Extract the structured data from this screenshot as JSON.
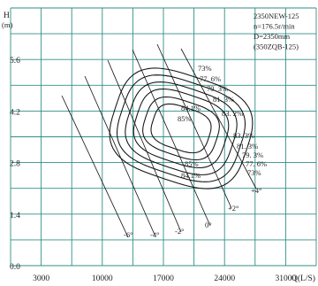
{
  "chart_data": {
    "type": "line",
    "ylabel_top": "H",
    "ylabel_unit": "(m)",
    "xlabel": "Q(L/S)",
    "yticks": [
      "0.0",
      "1.4",
      "2.8",
      "4.2",
      "5.6"
    ],
    "xticks": [
      "3000",
      "10000",
      "17000",
      "24000",
      "31000"
    ],
    "ylim": [
      0,
      7.0
    ],
    "xlim": [
      0,
      35000
    ],
    "grid": true,
    "info": [
      "2350NEW-125",
      "n=176.5r/min",
      "D=2350mm",
      "(350ZQB-125)"
    ],
    "efficiency_labels": [
      "73%",
      "77. 6%",
      "79. 3%",
      "81. 3%",
      "83. 2%",
      "84.1%",
      "85%",
      "83. 3%",
      "81. 3%",
      "79. 3%",
      "77. 6%",
      "73%",
      "85%",
      "84.1%"
    ],
    "blade_angles": [
      "-6°",
      "-4°",
      "-2°",
      "0°",
      "+2°",
      "+4°"
    ]
  }
}
